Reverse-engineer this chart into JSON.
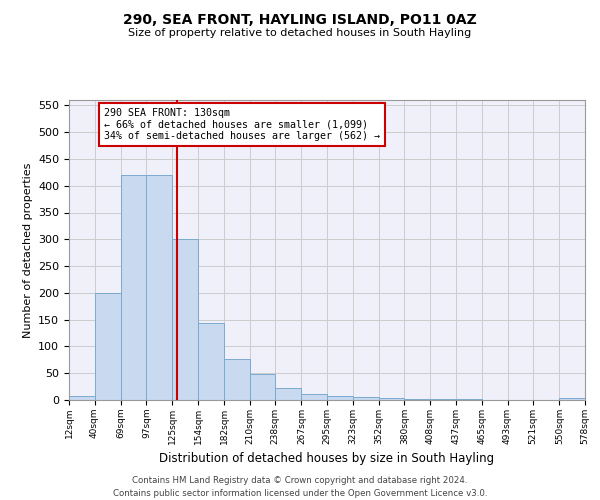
{
  "title1": "290, SEA FRONT, HAYLING ISLAND, PO11 0AZ",
  "title2": "Size of property relative to detached houses in South Hayling",
  "xlabel": "Distribution of detached houses by size in South Hayling",
  "ylabel": "Number of detached properties",
  "footnote": "Contains HM Land Registry data © Crown copyright and database right 2024.\nContains public sector information licensed under the Open Government Licence v3.0.",
  "annotation_line1": "290 SEA FRONT: 130sqm",
  "annotation_line2": "← 66% of detached houses are smaller (1,099)",
  "annotation_line3": "34% of semi-detached houses are larger (562) →",
  "subject_value": 130,
  "bin_edges": [
    12,
    40,
    69,
    97,
    125,
    154,
    182,
    210,
    238,
    267,
    295,
    323,
    352,
    380,
    408,
    437,
    465,
    493,
    521,
    550,
    578
  ],
  "bar_values": [
    8,
    200,
    420,
    420,
    300,
    143,
    77,
    48,
    23,
    12,
    8,
    6,
    4,
    1,
    1,
    1,
    0,
    0,
    0,
    3
  ],
  "bar_color": "#c8d9f0",
  "bar_edge_color": "#7aaad0",
  "vline_color": "#cc0000",
  "vline_x": 130,
  "annotation_box_edge_color": "#cc0000",
  "ylim": [
    0,
    560
  ],
  "yticks": [
    0,
    50,
    100,
    150,
    200,
    250,
    300,
    350,
    400,
    450,
    500,
    550
  ],
  "grid_color": "#cccccc",
  "bg_color": "#f0f0fa"
}
